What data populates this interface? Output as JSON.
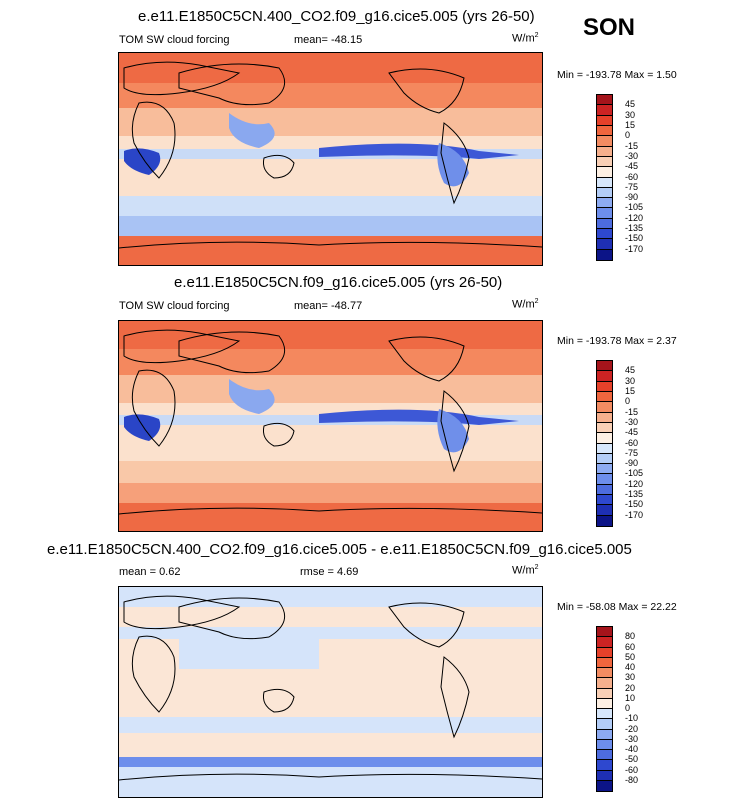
{
  "season": "SON",
  "panels": [
    {
      "title": "e.e11.E1850C5CN.400_CO2.f09_g16.cice5.005 (yrs 26-50)",
      "variable": "TOM SW cloud forcing",
      "mean_label": "mean=",
      "mean_value": "-48.15",
      "units": "W/m",
      "units_sup": "2",
      "min_label": "Min =",
      "min_value": "-193.78",
      "max_label": "Max =",
      "max_value": "1.50",
      "colorbar": {
        "labels": [
          "45",
          "30",
          "15",
          "0",
          "-15",
          "-30",
          "-45",
          "-60",
          "-75",
          "-90",
          "-105",
          "-120",
          "-135",
          "-150",
          "-170"
        ],
        "colors": [
          "#a5141b",
          "#cc2323",
          "#e6412a",
          "#f0663e",
          "#f38c62",
          "#f6b08d",
          "#f9d0b6",
          "#fdf0e4",
          "#d7e7fb",
          "#b3cdf7",
          "#8dabf2",
          "#6d8eec",
          "#4d6cdf",
          "#2e48cf",
          "#1e2fb4",
          "#0c1487"
        ]
      }
    },
    {
      "title": "e.e11.E1850C5CN.f09_g16.cice5.005 (yrs 26-50)",
      "variable": "TOM SW cloud forcing",
      "mean_label": "mean=",
      "mean_value": "-48.77",
      "units": "W/m",
      "units_sup": "2",
      "min_label": "Min =",
      "min_value": "-193.78",
      "max_label": "Max =",
      "max_value": "2.37",
      "colorbar": {
        "labels": [
          "45",
          "30",
          "15",
          "0",
          "-15",
          "-30",
          "-45",
          "-60",
          "-75",
          "-90",
          "-105",
          "-120",
          "-135",
          "-150",
          "-170"
        ],
        "colors": [
          "#a5141b",
          "#cc2323",
          "#e6412a",
          "#f0663e",
          "#f38c62",
          "#f6b08d",
          "#f9d0b6",
          "#fdf0e4",
          "#d7e7fb",
          "#b3cdf7",
          "#8dabf2",
          "#6d8eec",
          "#4d6cdf",
          "#2e48cf",
          "#1e2fb4",
          "#0c1487"
        ]
      }
    },
    {
      "title": "e.e11.E1850C5CN.400_CO2.f09_g16.cice5.005 - e.e11.E1850C5CN.f09_g16.cice5.005",
      "mean_label": "mean =",
      "mean_value": "0.62",
      "rmse_label": "rmse =",
      "rmse_value": "4.69",
      "units": "W/m",
      "units_sup": "2",
      "min_label": "Min =",
      "min_value": "-58.08",
      "max_label": "Max =",
      "max_value": "22.22",
      "colorbar": {
        "labels": [
          "80",
          "60",
          "50",
          "40",
          "30",
          "20",
          "10",
          "0",
          "-10",
          "-20",
          "-30",
          "-40",
          "-50",
          "-60",
          "-80"
        ],
        "colors": [
          "#a5141b",
          "#cc2323",
          "#e6412a",
          "#f0663e",
          "#f38c62",
          "#f6b08d",
          "#f9d0b6",
          "#fdf0e4",
          "#d7e7fb",
          "#b3cdf7",
          "#8dabf2",
          "#6d8eec",
          "#4d6cdf",
          "#2e48cf",
          "#1e2fb4",
          "#0c1487"
        ]
      }
    }
  ],
  "chart_data": {
    "type": "heatmap",
    "title": "SON",
    "maps": [
      {
        "mean": -48.15,
        "min": -193.78,
        "max": 1.5,
        "levels": [
          45,
          30,
          15,
          0,
          -15,
          -30,
          -45,
          -60,
          -75,
          -90,
          -105,
          -120,
          -135,
          -150,
          -170
        ]
      },
      {
        "mean": -48.77,
        "min": -193.78,
        "max": 2.37,
        "levels": [
          45,
          30,
          15,
          0,
          -15,
          -30,
          -45,
          -60,
          -75,
          -90,
          -105,
          -120,
          -135,
          -150,
          -170
        ]
      },
      {
        "mean": 0.62,
        "rmse": 4.69,
        "min": -58.08,
        "max": 22.22,
        "levels": [
          80,
          60,
          50,
          40,
          30,
          20,
          10,
          0,
          -10,
          -20,
          -30,
          -40,
          -50,
          -60,
          -80
        ]
      }
    ]
  }
}
